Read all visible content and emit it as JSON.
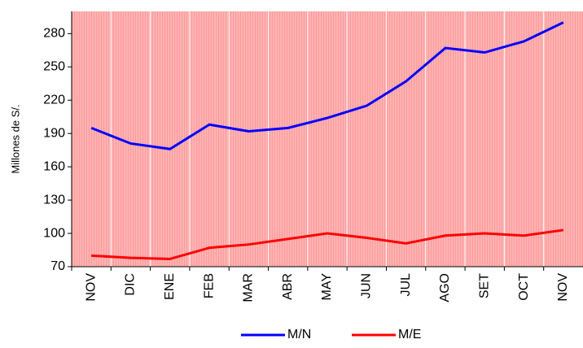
{
  "chart_data": {
    "type": "line",
    "y_label": "Millones de S/.",
    "categories": [
      "NOV",
      "DIC",
      "ENE",
      "FEB",
      "MAR",
      "ABR",
      "MAY",
      "JUN",
      "JUL",
      "AGO",
      "SET",
      "OCT",
      "NOV"
    ],
    "series": [
      {
        "name": "M/N",
        "color": "#0000ff",
        "values": [
          195,
          181,
          176,
          198,
          192,
          195,
          204,
          215,
          237,
          267,
          263,
          273,
          290
        ]
      },
      {
        "name": "M/E",
        "color": "#ff0000",
        "values": [
          80,
          78,
          77,
          87,
          90,
          95,
          100,
          96,
          91,
          98,
          100,
          98,
          103
        ]
      }
    ],
    "ylim": [
      70,
      300
    ],
    "yticks": [
      70,
      100,
      130,
      160,
      190,
      220,
      250,
      280
    ],
    "grid": true,
    "legend": "bottom"
  }
}
